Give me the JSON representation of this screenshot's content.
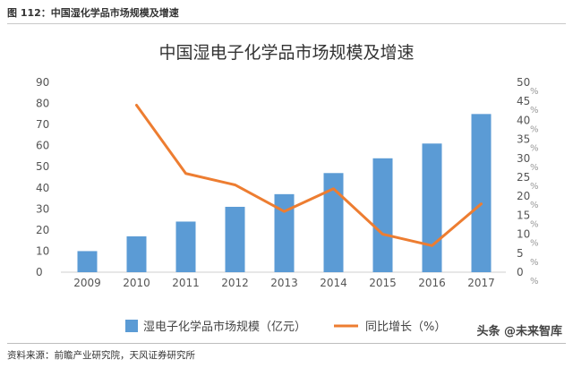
{
  "figure_caption": "图 112：中国湿化学品市场规模及增速",
  "source_note": "资料来源：前瞻产业研究院，天风证券研究所",
  "watermark": "头条 @未来智库",
  "chart_data": {
    "type": "bar",
    "title": "中国湿电子化学品市场规模及增速",
    "categories": [
      "2009",
      "2010",
      "2011",
      "2012",
      "2013",
      "2014",
      "2015",
      "2016",
      "2017"
    ],
    "series": [
      {
        "name": "湿电子化学品市场规模（亿元）",
        "kind": "bar",
        "axis": "left",
        "color": "#5b9bd5",
        "values": [
          10,
          17,
          24,
          31,
          37,
          47,
          54,
          61,
          75
        ]
      },
      {
        "name": "同比增长（%）",
        "kind": "line",
        "axis": "right",
        "color": "#ed7d31",
        "values": [
          null,
          44,
          26,
          23,
          16,
          22,
          10,
          7,
          18
        ]
      }
    ],
    "y_left": {
      "ticks": [
        0,
        10,
        20,
        30,
        40,
        50,
        60,
        70,
        80,
        90
      ],
      "ylim": [
        0,
        90
      ]
    },
    "y_right": {
      "ticks": [
        0,
        5,
        10,
        15,
        20,
        25,
        30,
        35,
        40,
        45,
        50
      ],
      "tick_labels": [
        "0",
        "5",
        "10",
        "15",
        "20",
        "25",
        "30",
        "35",
        "40",
        "45",
        "50"
      ],
      "unit": "%",
      "ylim": [
        0,
        50
      ]
    },
    "legend": "bottom",
    "grid": false
  }
}
